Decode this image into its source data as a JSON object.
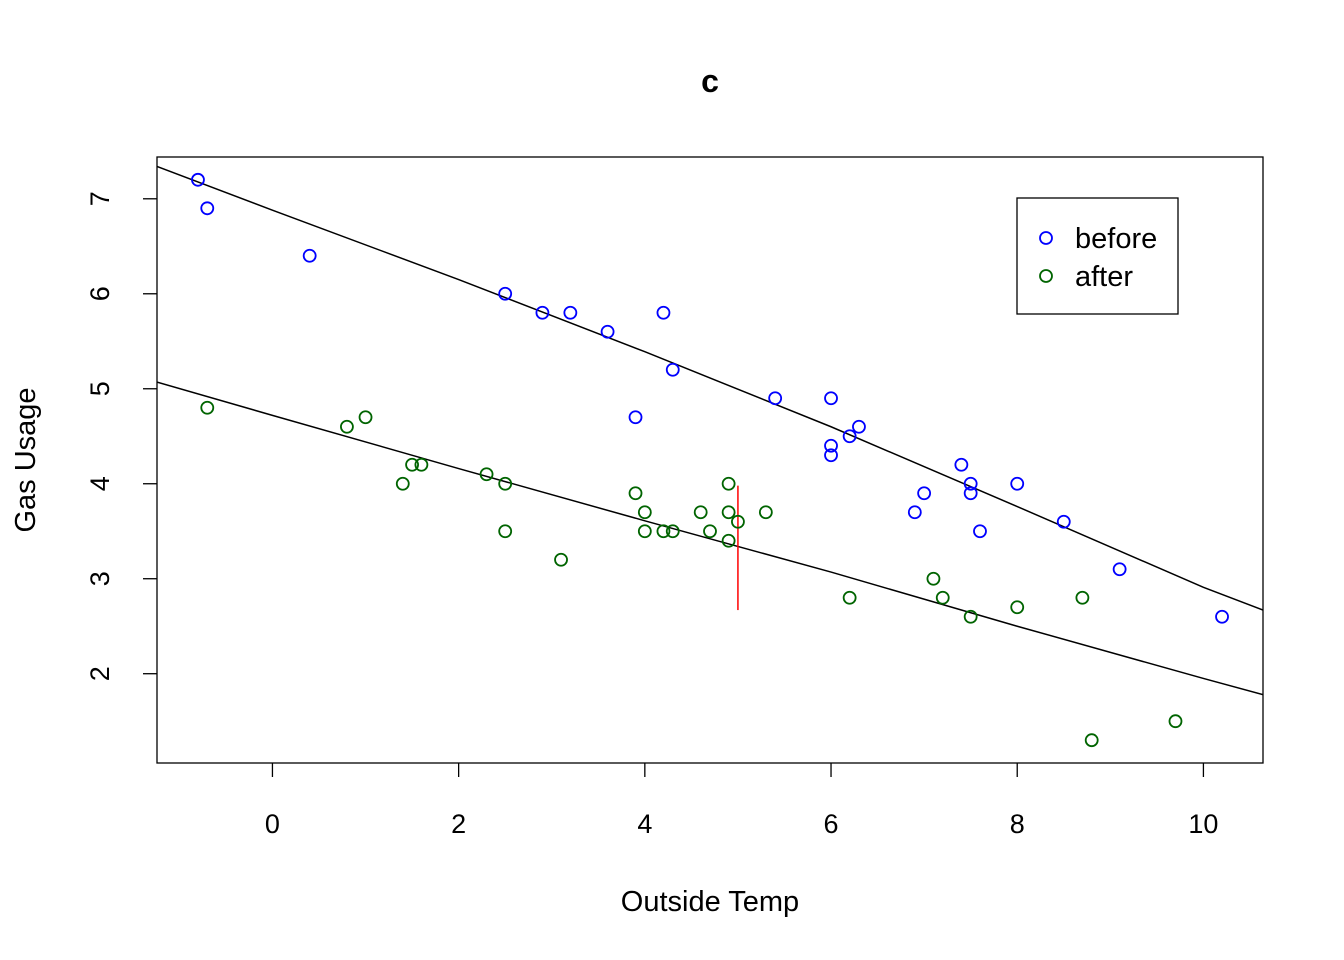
{
  "chart_data": {
    "type": "scatter",
    "title": "c",
    "xlabel": "Outside Temp",
    "ylabel": "Gas Usage",
    "xlim": [
      -1.24,
      10.64
    ],
    "ylim": [
      1.06,
      7.44
    ],
    "x_ticks": [
      0,
      2,
      4,
      6,
      8,
      10
    ],
    "x_tick_labels": [
      "0",
      "2",
      "4",
      "6",
      "8",
      "10"
    ],
    "y_ticks": [
      2,
      3,
      4,
      5,
      6,
      7
    ],
    "y_tick_labels": [
      "2",
      "3",
      "4",
      "5",
      "6",
      "7"
    ],
    "grid": false,
    "legend_position": "top-right",
    "series": [
      {
        "name": "before",
        "color": "#0000ff",
        "marker": "open-circle",
        "points": [
          [
            -0.8,
            7.2
          ],
          [
            -0.7,
            6.9
          ],
          [
            0.4,
            6.4
          ],
          [
            2.5,
            6.0
          ],
          [
            2.9,
            5.8
          ],
          [
            3.2,
            5.8
          ],
          [
            3.6,
            5.6
          ],
          [
            3.9,
            4.7
          ],
          [
            4.2,
            5.8
          ],
          [
            4.3,
            5.2
          ],
          [
            5.4,
            4.9
          ],
          [
            6.0,
            4.9
          ],
          [
            6.0,
            4.4
          ],
          [
            6.0,
            4.3
          ],
          [
            6.2,
            4.5
          ],
          [
            6.3,
            4.6
          ],
          [
            6.9,
            3.7
          ],
          [
            7.0,
            3.9
          ],
          [
            7.4,
            4.2
          ],
          [
            7.5,
            4.0
          ],
          [
            7.5,
            3.9
          ],
          [
            7.6,
            3.5
          ],
          [
            8.0,
            4.0
          ],
          [
            8.5,
            3.6
          ],
          [
            9.1,
            3.1
          ],
          [
            10.2,
            2.6
          ]
        ]
      },
      {
        "name": "after",
        "color": "#006400",
        "marker": "open-circle",
        "points": [
          [
            -0.7,
            4.8
          ],
          [
            0.8,
            4.6
          ],
          [
            1.0,
            4.7
          ],
          [
            1.4,
            4.0
          ],
          [
            1.5,
            4.2
          ],
          [
            1.6,
            4.2
          ],
          [
            2.3,
            4.1
          ],
          [
            2.5,
            3.5
          ],
          [
            2.5,
            4.0
          ],
          [
            3.1,
            3.2
          ],
          [
            3.9,
            3.9
          ],
          [
            4.0,
            3.7
          ],
          [
            4.0,
            3.5
          ],
          [
            4.2,
            3.5
          ],
          [
            4.3,
            3.5
          ],
          [
            4.6,
            3.7
          ],
          [
            4.7,
            3.5
          ],
          [
            4.9,
            4.0
          ],
          [
            4.9,
            3.7
          ],
          [
            4.9,
            3.4
          ],
          [
            5.0,
            3.6
          ],
          [
            5.3,
            3.7
          ],
          [
            6.2,
            2.8
          ],
          [
            7.1,
            3.0
          ],
          [
            7.2,
            2.8
          ],
          [
            7.5,
            2.6
          ],
          [
            8.0,
            2.7
          ],
          [
            8.7,
            2.8
          ],
          [
            8.8,
            1.3
          ],
          [
            9.7,
            1.5
          ]
        ]
      }
    ],
    "fitted_curves": [
      {
        "name": "before-fit",
        "color": "#000000",
        "points": [
          [
            -1.24,
            7.34
          ],
          [
            0,
            6.88
          ],
          [
            2,
            6.15
          ],
          [
            4,
            5.39
          ],
          [
            6,
            4.6
          ],
          [
            8,
            3.76
          ],
          [
            10,
            2.91
          ],
          [
            10.64,
            2.67
          ]
        ]
      },
      {
        "name": "after-fit",
        "color": "#000000",
        "points": [
          [
            -1.24,
            5.07
          ],
          [
            0,
            4.72
          ],
          [
            2,
            4.16
          ],
          [
            4,
            3.61
          ],
          [
            6,
            3.07
          ],
          [
            8,
            2.5
          ],
          [
            10,
            1.95
          ],
          [
            10.64,
            1.78
          ]
        ]
      }
    ],
    "annotations": [
      {
        "type": "vertical-segment",
        "color": "#ff0000",
        "x": 5.0,
        "y_from": 2.67,
        "y_to": 3.98
      }
    ]
  }
}
